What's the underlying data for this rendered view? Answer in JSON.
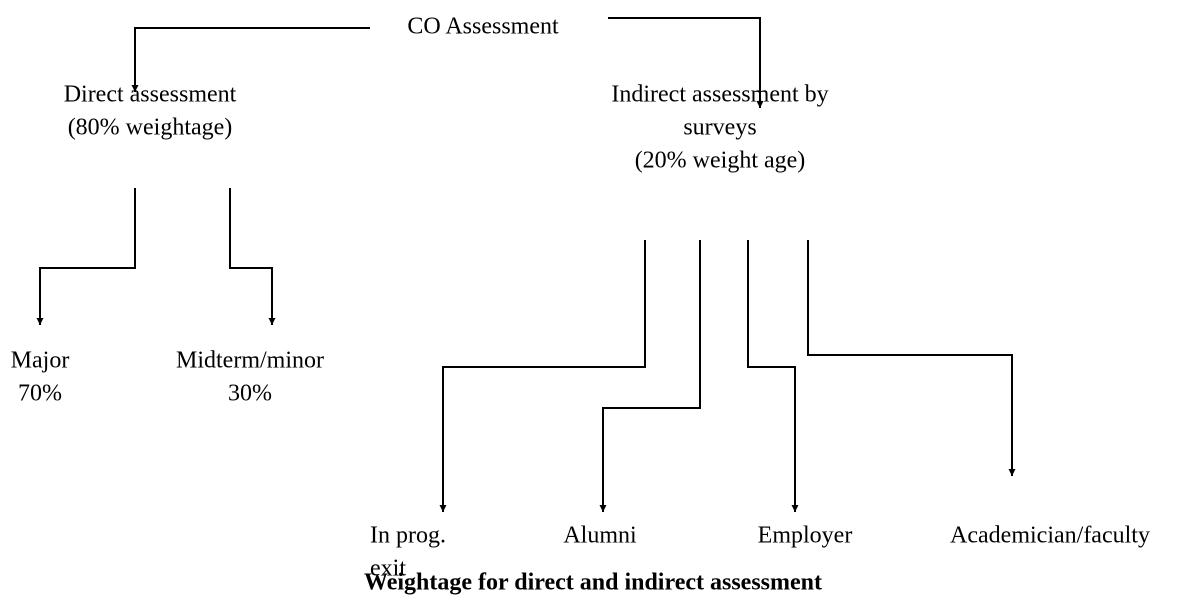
{
  "nodes": [
    {
      "lines": [
        "CO Assessment"
      ]
    },
    {
      "lines": [
        "Direct assessment",
        "(80% weightage)"
      ]
    },
    {
      "lines": [
        "Indirect assessment by",
        "surveys",
        "(20% weight age)"
      ]
    },
    {
      "lines": [
        "Major",
        "70%"
      ]
    },
    {
      "lines": [
        "Midterm/minor",
        "30%"
      ]
    },
    {
      "lines": [
        "In prog.",
        "exit"
      ]
    },
    {
      "lines": [
        "Alumni"
      ]
    },
    {
      "lines": [
        "Employer"
      ]
    },
    {
      "lines": [
        "Academician/faculty"
      ]
    }
  ],
  "caption": "Weightage for direct and indirect assessment"
}
